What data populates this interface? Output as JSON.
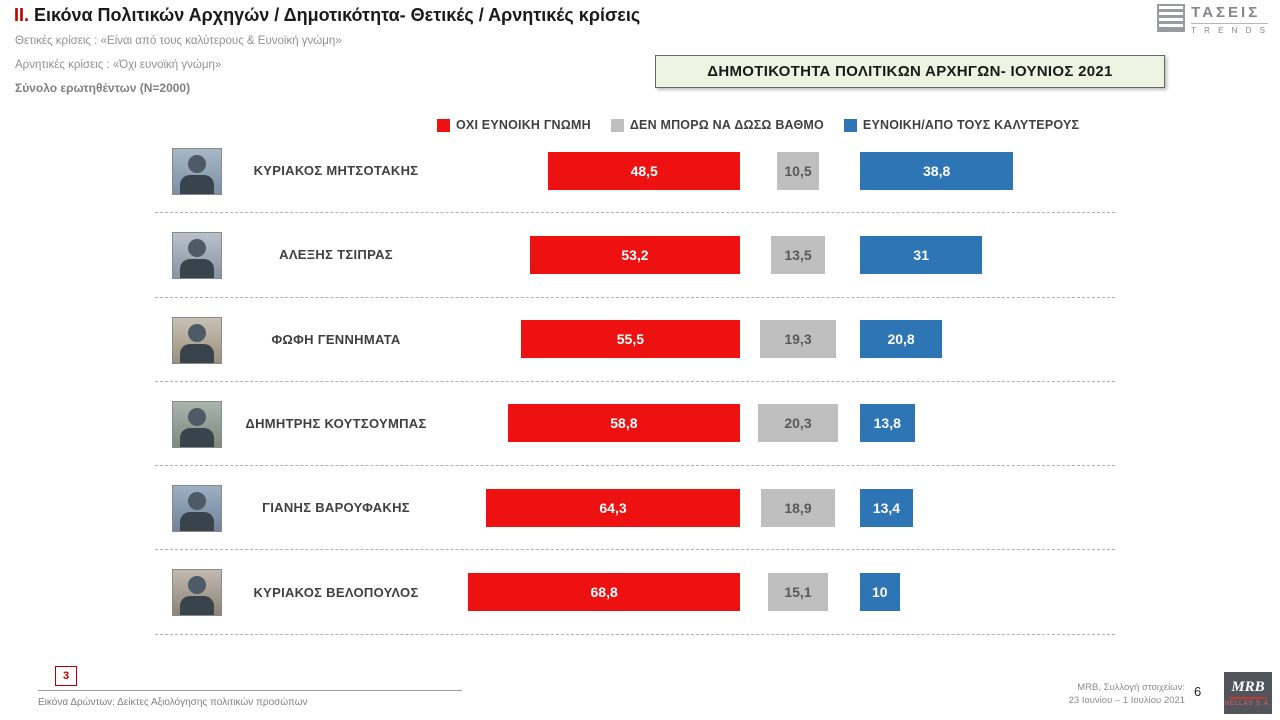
{
  "header": {
    "section_num": "II.",
    "title": "Εικόνα Πολιτικών Αρχηγών  / Δημοτικότητα- Θετικές / Αρνητικές κρίσεις",
    "subtitle_positive": "Θετικές κρίσεις : «Είναι από τους καλύτερους &  Ευνοϊκή γνώμη»",
    "subtitle_negative": "Αρνητικές κρίσεις : «Όχι ευνοϊκή γνώμη»",
    "sample": "Σύνολο ερωτηθέντων (N=2000)",
    "box_title": "ΔΗΜΟΤΙΚΟΤΗΤΑ ΠΟΛΙΤΙΚΩΝ ΑΡΧΗΓΩΝ- ΙΟΥΝΙΟΣ 2021"
  },
  "logo": {
    "taseis": "ΤΑΣΕΙΣ",
    "trends": "T R E N D S"
  },
  "chart_data": {
    "type": "bar",
    "orientation": "horizontal",
    "title": "ΔΗΜΟΤΙΚΟΤΗΤΑ ΠΟΛΙΤΙΚΩΝ ΑΡΧΗΓΩΝ- ΙΟΥΝΙΟΣ 2021",
    "legend_position": "top",
    "xlim": [
      0,
      100
    ],
    "categories": [
      "ΚΥΡΙΑΚΟΣ ΜΗΤΣΟΤΑΚΗΣ",
      "ΑΛΕΞΗΣ ΤΣΙΠΡΑΣ",
      "ΦΩΦΗ ΓΕΝΝΗΜΑΤΑ",
      "ΔΗΜΗΤΡΗΣ ΚΟΥΤΣΟΥΜΠΑΣ",
      "ΓΙΑΝΗΣ ΒΑΡΟΥΦΑΚΗΣ",
      "ΚΥΡΙΑΚΟΣ ΒΕΛΟΠΟΥΛΟΣ"
    ],
    "series": [
      {
        "name": "ΟΧΙ ΕΥΝΟΙΚΗ ΓΝΩΜΗ",
        "color": "#ee1111",
        "values": [
          48.5,
          53.2,
          55.5,
          58.8,
          64.3,
          68.8
        ],
        "labels": [
          "48,5",
          "53,2",
          "55,5",
          "58,8",
          "64,3",
          "68,8"
        ]
      },
      {
        "name": "ΔΕΝ ΜΠΟΡΩ ΝΑ ΔΩΣΩ ΒΑΘΜΟ",
        "color": "#bfbfbf",
        "values": [
          10.5,
          13.5,
          19.3,
          20.3,
          18.9,
          15.1
        ],
        "labels": [
          "10,5",
          "13,5",
          "19,3",
          "20,3",
          "18,9",
          "15,1"
        ]
      },
      {
        "name": "ΕΥΝΟΙΚΗ/ΑΠΟ ΤΟΥΣ ΚΑΛΥΤΕΡΟΥΣ",
        "color": "#2e75b6",
        "values": [
          38.8,
          31,
          20.8,
          13.8,
          13.4,
          10
        ],
        "labels": [
          "38,8",
          "31",
          "20,8",
          "13,8",
          "13,4",
          "10"
        ]
      }
    ]
  },
  "footer": {
    "slide_box": "3",
    "note": "Εικόνα Δρώντων: Δείκτες Αξιολόγησης πολιτικών προσώπων",
    "source_line1": "MRB, Συλλογή στοιχείων:",
    "source_line2": "23 Ιουνίου –  1 Ιουλίου 2021",
    "page": "6",
    "mrb": "MRB",
    "mrb_sub": "HELLAS S.A."
  }
}
